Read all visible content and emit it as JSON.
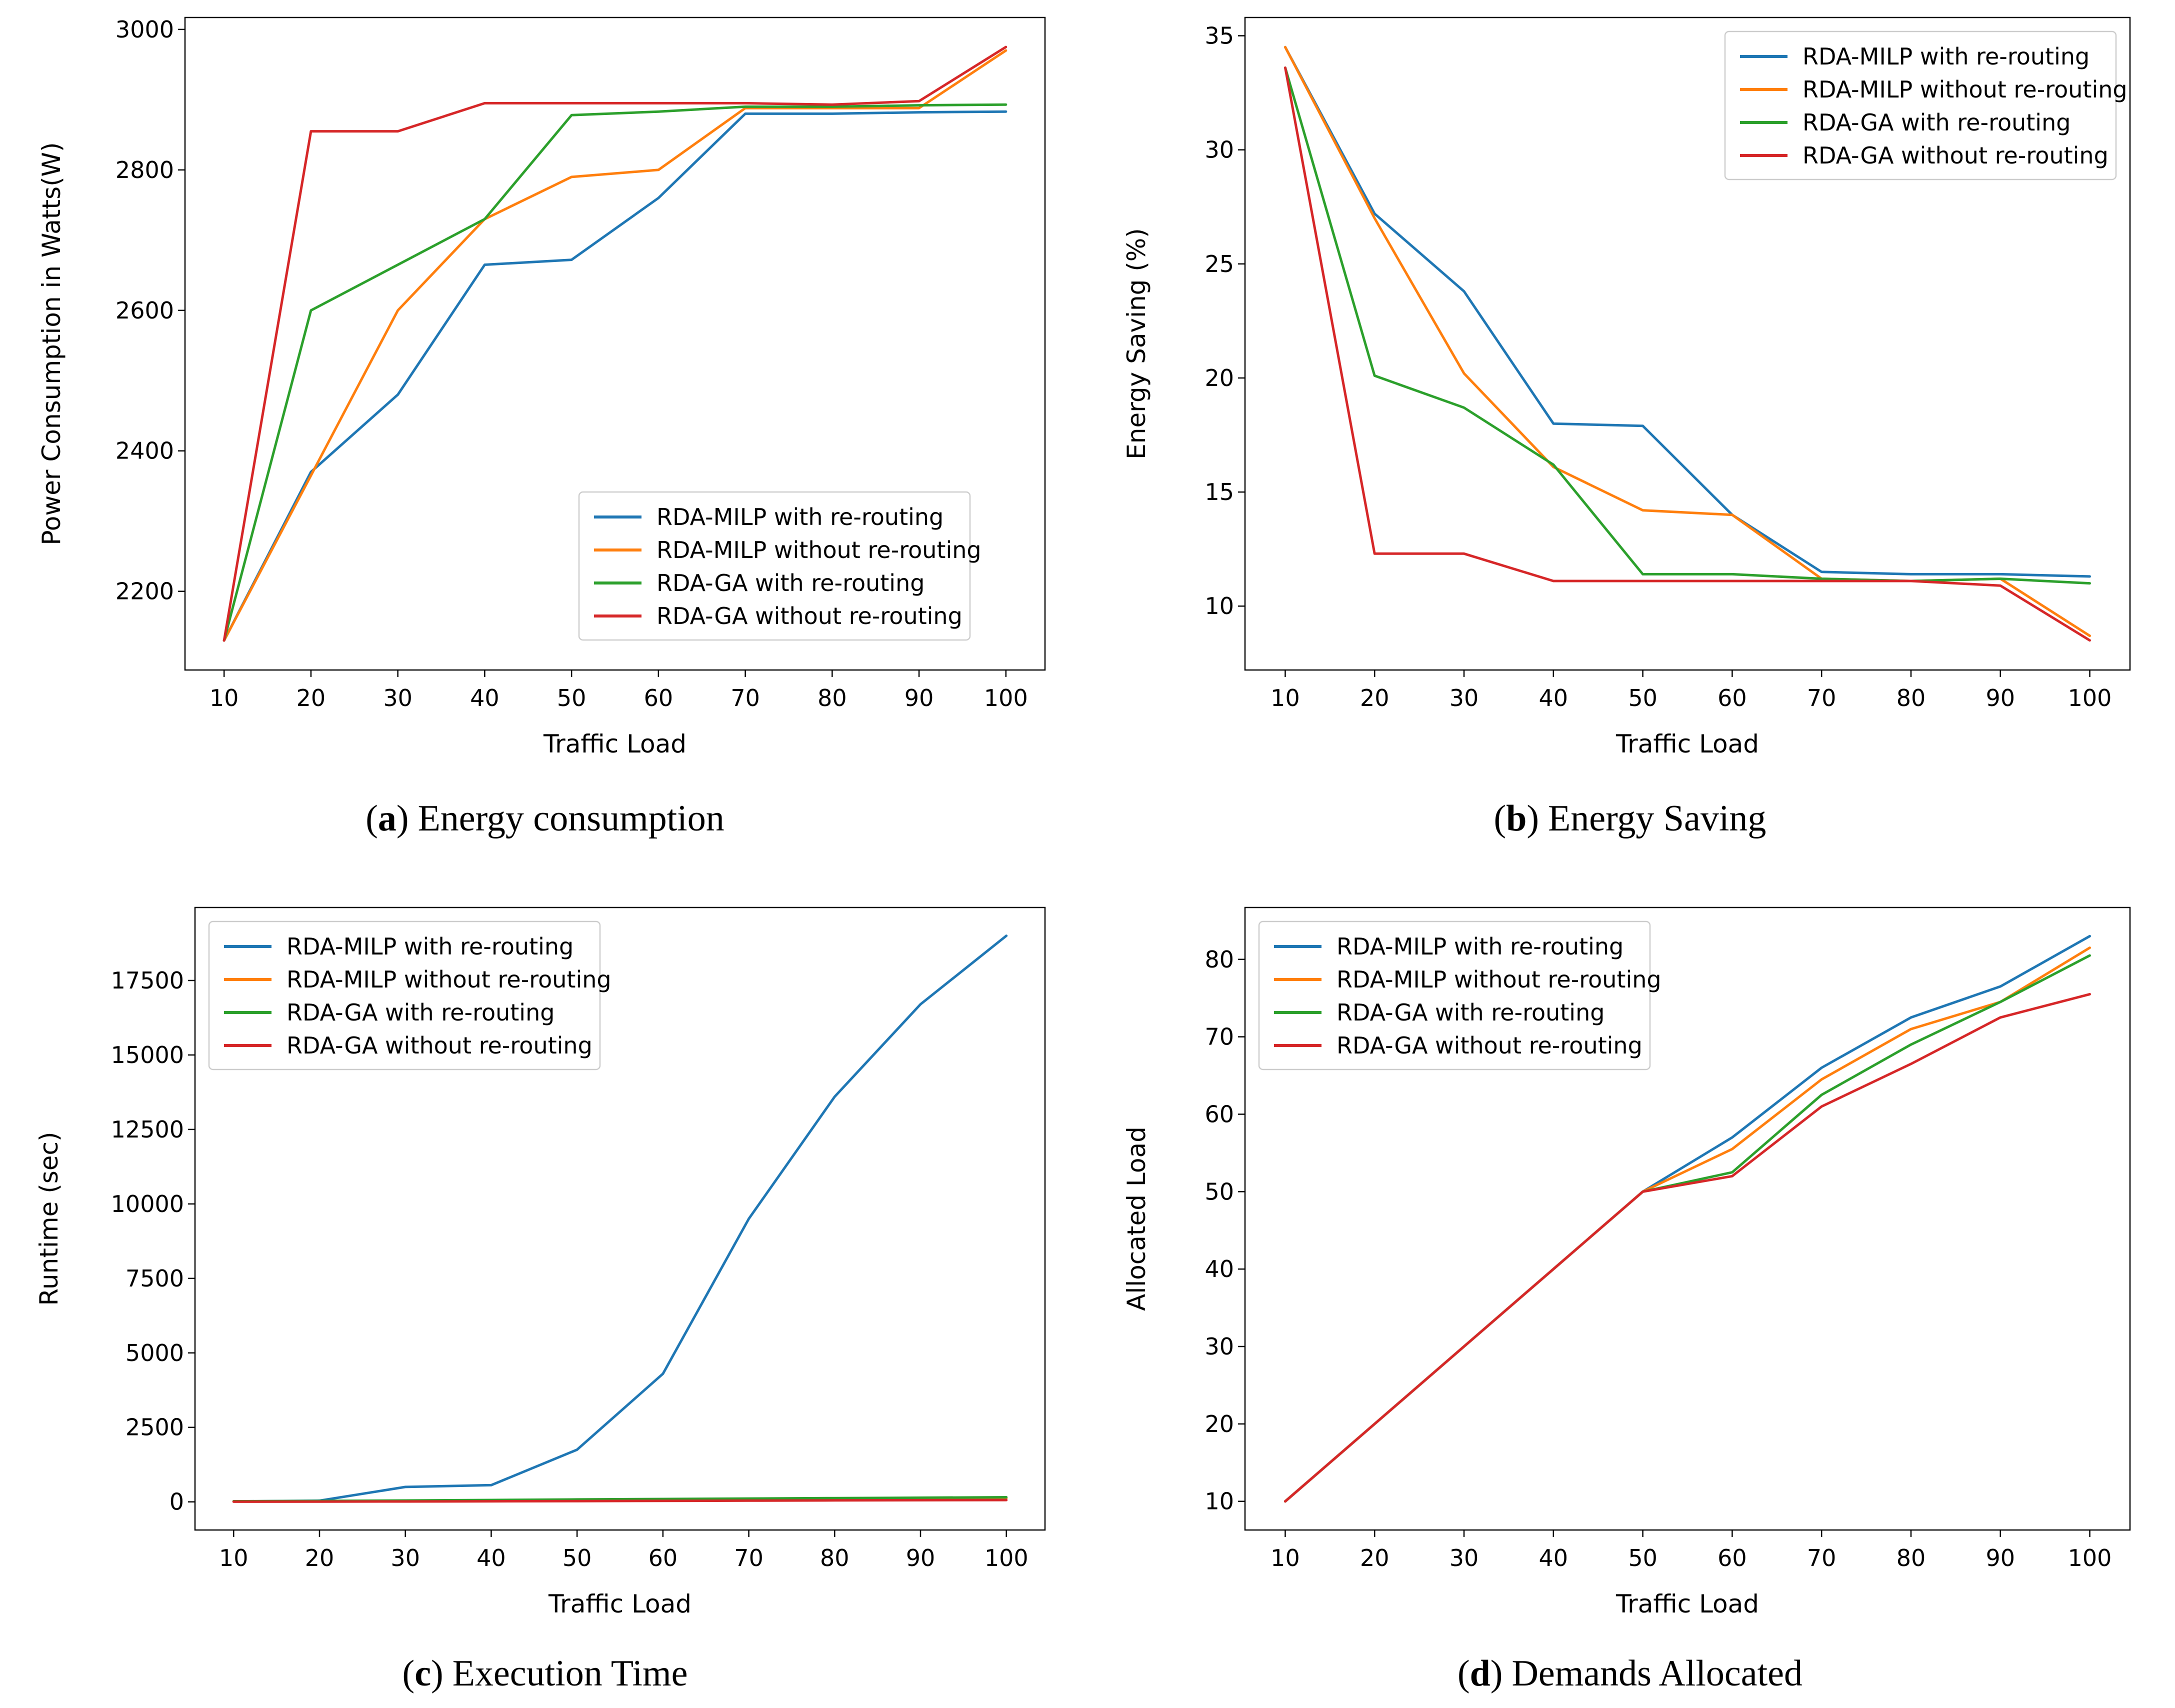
{
  "page": {
    "background": "#ffffff",
    "text_color": "#000000"
  },
  "series_colors": [
    "#1f77b4",
    "#ff7f0e",
    "#2ca02c",
    "#d62728"
  ],
  "legend_labels": [
    "RDA-MILP with re-routing",
    "RDA-MILP without re-routing",
    "RDA-GA with re-routing",
    "RDA-GA without re-routing"
  ],
  "captions": [
    {
      "letter": "a",
      "label": "Energy consumption"
    },
    {
      "letter": "b",
      "label": "Energy Saving"
    },
    {
      "letter": "c",
      "label": "Execution Time"
    },
    {
      "letter": "d",
      "label": "Demands Allocated"
    }
  ],
  "chart_data": [
    {
      "type": "line",
      "title": "(a) Energy consumption",
      "xlabel": "Traffic Load",
      "ylabel": "Power Consumption in Watts(W)",
      "x": [
        10,
        20,
        30,
        40,
        50,
        60,
        70,
        80,
        90,
        100
      ],
      "xticks": [
        10,
        20,
        30,
        40,
        50,
        60,
        70,
        80,
        90,
        100
      ],
      "yticks": [
        2200,
        2400,
        2600,
        2800,
        3000
      ],
      "xlim": [
        5.5,
        104.5
      ],
      "ylim": [
        2088,
        3017
      ],
      "grid": false,
      "legend_position": "lower-right",
      "series": [
        {
          "name": "RDA-MILP with re-routing",
          "color": "#1f77b4",
          "values": [
            2130,
            2370,
            2480,
            2665,
            2672,
            2760,
            2880,
            2880,
            2882,
            2883
          ]
        },
        {
          "name": "RDA-MILP without re-routing",
          "color": "#ff7f0e",
          "values": [
            2130,
            2365,
            2600,
            2730,
            2790,
            2800,
            2888,
            2888,
            2888,
            2970
          ]
        },
        {
          "name": "RDA-GA with re-routing",
          "color": "#2ca02c",
          "values": [
            2130,
            2600,
            2665,
            2730,
            2878,
            2883,
            2890,
            2890,
            2892,
            2893
          ]
        },
        {
          "name": "RDA-GA without re-routing",
          "color": "#d62728",
          "values": [
            2130,
            2855,
            2855,
            2895,
            2895,
            2895,
            2895,
            2893,
            2898,
            2975
          ]
        }
      ]
    },
    {
      "type": "line",
      "title": "(b) Energy Saving",
      "xlabel": "Traffic Load",
      "ylabel": "Energy Saving (%)",
      "x": [
        10,
        20,
        30,
        40,
        50,
        60,
        70,
        80,
        90,
        100
      ],
      "xticks": [
        10,
        20,
        30,
        40,
        50,
        60,
        70,
        80,
        90,
        100
      ],
      "yticks": [
        10,
        15,
        20,
        25,
        30,
        35
      ],
      "xlim": [
        5.5,
        104.5
      ],
      "ylim": [
        7.2,
        35.8
      ],
      "grid": false,
      "legend_position": "upper-right",
      "series": [
        {
          "name": "RDA-MILP with re-routing",
          "color": "#1f77b4",
          "values": [
            34.5,
            27.2,
            23.8,
            18.0,
            17.9,
            14.0,
            11.5,
            11.4,
            11.4,
            11.3
          ]
        },
        {
          "name": "RDA-MILP without re-routing",
          "color": "#ff7f0e",
          "values": [
            34.5,
            27.0,
            20.2,
            16.1,
            14.2,
            14.0,
            11.2,
            11.1,
            11.2,
            8.7
          ]
        },
        {
          "name": "RDA-GA with re-routing",
          "color": "#2ca02c",
          "values": [
            33.6,
            20.1,
            18.7,
            16.2,
            11.4,
            11.4,
            11.2,
            11.1,
            11.2,
            11.0
          ]
        },
        {
          "name": "RDA-GA without re-routing",
          "color": "#d62728",
          "values": [
            33.6,
            12.3,
            12.3,
            11.1,
            11.1,
            11.1,
            11.1,
            11.1,
            10.9,
            8.5
          ]
        }
      ]
    },
    {
      "type": "line",
      "title": "(c) Execution Time",
      "xlabel": "Traffic Load",
      "ylabel": "Runtime (sec)",
      "x": [
        10,
        20,
        30,
        40,
        50,
        60,
        70,
        80,
        90,
        100
      ],
      "xticks": [
        10,
        20,
        30,
        40,
        50,
        60,
        70,
        80,
        90,
        100
      ],
      "yticks": [
        0,
        2500,
        5000,
        7500,
        10000,
        12500,
        15000,
        17500
      ],
      "xlim": [
        5.5,
        104.5
      ],
      "ylim": [
        -945,
        19950
      ],
      "grid": false,
      "legend_position": "upper-left",
      "series": [
        {
          "name": "RDA-MILP with re-routing",
          "color": "#1f77b4",
          "values": [
            15,
            40,
            500,
            560,
            1750,
            4300,
            9500,
            13600,
            16700,
            19000
          ]
        },
        {
          "name": "RDA-MILP without re-routing",
          "color": "#ff7f0e",
          "values": [
            12,
            15,
            20,
            30,
            45,
            60,
            75,
            90,
            105,
            120
          ]
        },
        {
          "name": "RDA-GA with re-routing",
          "color": "#2ca02c",
          "values": [
            20,
            30,
            45,
            62,
            80,
            95,
            110,
            125,
            140,
            155
          ]
        },
        {
          "name": "RDA-GA without re-routing",
          "color": "#d62728",
          "values": [
            5,
            8,
            12,
            18,
            25,
            32,
            40,
            48,
            55,
            60
          ]
        }
      ]
    },
    {
      "type": "line",
      "title": "(d) Demands Allocated",
      "xlabel": "Traffic Load",
      "ylabel": "Allocated Load",
      "x": [
        10,
        20,
        30,
        40,
        50,
        60,
        70,
        80,
        90,
        100
      ],
      "xticks": [
        10,
        20,
        30,
        40,
        50,
        60,
        70,
        80,
        90,
        100
      ],
      "yticks": [
        10,
        20,
        30,
        40,
        50,
        60,
        70,
        80
      ],
      "xlim": [
        5.5,
        104.5
      ],
      "ylim": [
        6.3,
        86.7
      ],
      "grid": false,
      "legend_position": "upper-left",
      "series": [
        {
          "name": "RDA-MILP with re-routing",
          "color": "#1f77b4",
          "values": [
            10,
            20,
            30,
            40,
            50,
            57,
            66,
            72.5,
            76.5,
            83
          ]
        },
        {
          "name": "RDA-MILP without re-routing",
          "color": "#ff7f0e",
          "values": [
            10,
            20,
            30,
            40,
            50,
            55.5,
            64.5,
            71,
            74.5,
            81.5
          ]
        },
        {
          "name": "RDA-GA with re-routing",
          "color": "#2ca02c",
          "values": [
            10,
            20,
            30,
            40,
            50,
            52.5,
            62.5,
            69,
            74.5,
            80.5
          ]
        },
        {
          "name": "RDA-GA without re-routing",
          "color": "#d62728",
          "values": [
            10,
            20,
            30,
            40,
            50,
            52,
            61,
            66.5,
            72.5,
            75.5
          ]
        }
      ]
    }
  ]
}
